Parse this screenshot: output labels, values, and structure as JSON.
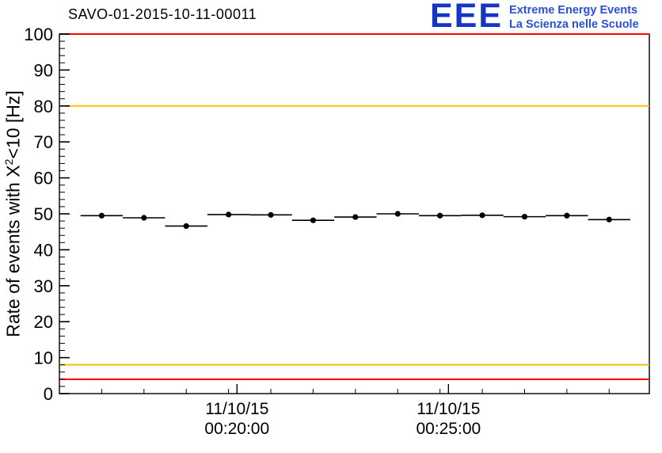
{
  "header": {
    "logo": {
      "acronym": "EEE",
      "acronym_color": "#1535c6",
      "text_color": "#2b4fd8",
      "line1": "Extreme Energy Events",
      "line2": "La Scienza nelle Scuole"
    }
  },
  "labels": {
    "y_prefix": "Rate of events with X",
    "y_sup": "2",
    "y_suffix": "<10 [Hz]"
  },
  "chart_data": {
    "type": "scatter",
    "title": "SAVO-01-2015-10-11-00011",
    "ylabel": "Rate of events with X^2<10 [Hz]",
    "xlabel": "",
    "grid": false,
    "ylim": [
      0,
      100
    ],
    "xlim": [
      0,
      13.95
    ],
    "yticks": [
      0,
      10,
      20,
      30,
      40,
      50,
      60,
      70,
      80,
      90,
      100
    ],
    "ytick_minor_step": 2,
    "xticks": [
      {
        "x": 4.2,
        "lines": [
          "11/10/15",
          "00:20:00"
        ]
      },
      {
        "x": 9.2,
        "lines": [
          "11/10/15",
          "00:25:00"
        ]
      }
    ],
    "hlines": [
      {
        "y": 100,
        "color": "#ff0000",
        "name": "upper-alarm-line"
      },
      {
        "y": 80,
        "color": "#ffbe00",
        "name": "upper-warning-line"
      },
      {
        "y": 8,
        "color": "#ffbe00",
        "name": "lower-warning-line"
      },
      {
        "y": 4,
        "color": "#ff0000",
        "name": "lower-alarm-line"
      }
    ],
    "marker_color": "#000000",
    "x_error": 0.5,
    "y_error": 0.6,
    "points": [
      {
        "x": 1,
        "y": 49.5
      },
      {
        "x": 2,
        "y": 48.9
      },
      {
        "x": 3,
        "y": 46.6
      },
      {
        "x": 4,
        "y": 49.8
      },
      {
        "x": 5,
        "y": 49.7
      },
      {
        "x": 6,
        "y": 48.2
      },
      {
        "x": 7,
        "y": 49.1
      },
      {
        "x": 8,
        "y": 50.0
      },
      {
        "x": 9,
        "y": 49.5
      },
      {
        "x": 10,
        "y": 49.6
      },
      {
        "x": 11,
        "y": 49.2
      },
      {
        "x": 12,
        "y": 49.5
      },
      {
        "x": 13,
        "y": 48.4
      }
    ]
  }
}
